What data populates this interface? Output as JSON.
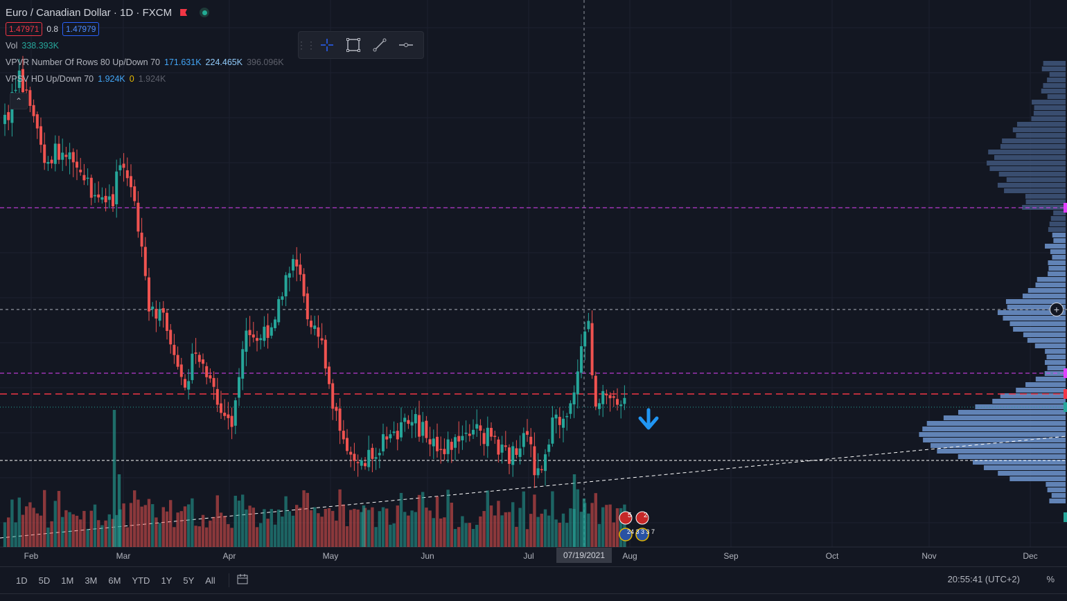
{
  "legend": {
    "symbol": "Euro / Canadian Dollar · 1D · FXCM",
    "bid": "1.47971",
    "spread": "0.8",
    "ask": "1.47979",
    "vol_name": "Vol",
    "vol_value": "338.393K",
    "vpvr_name": "VPVR Number Of Rows 80 Up/Down 70",
    "vpvr_up": "171.631K",
    "vpvr_down": "224.465K",
    "vpvr_total": "396.096K",
    "vpsv_name": "VPSV HD Up/Down 70",
    "vpsv_up": "1.924K",
    "vpsv_down": "0",
    "vpsv_total": "1.924K"
  },
  "toolbar": {
    "tools": [
      "crosshair-icon",
      "rectangle-icon",
      "trend-line-icon",
      "horizontal-ray-icon"
    ]
  },
  "x_axis": {
    "labels": [
      "Feb",
      "Mar",
      "Apr",
      "May",
      "Jun",
      "Jul",
      "Aug",
      "Sep",
      "Oct",
      "Nov",
      "Dec"
    ],
    "highlighted": "07/19/2021"
  },
  "bottom_bar": {
    "ranges": [
      "1D",
      "5D",
      "1M",
      "3M",
      "6M",
      "YTD",
      "1Y",
      "5Y",
      "All"
    ],
    "clock": "20:55:41 (UTC+2)",
    "percent": "%"
  },
  "events": {
    "top_count": "5",
    "top_count2": "2",
    "bottom_text": "24 3 3 3 7"
  },
  "colors": {
    "up": "#26a69a",
    "down": "#ef5350",
    "vp_light": "#6a8fc7",
    "vp_dark": "#3e5378",
    "magenta": "#e040fb",
    "orange_red": "#f23645",
    "arrow": "#2196f3"
  }
}
